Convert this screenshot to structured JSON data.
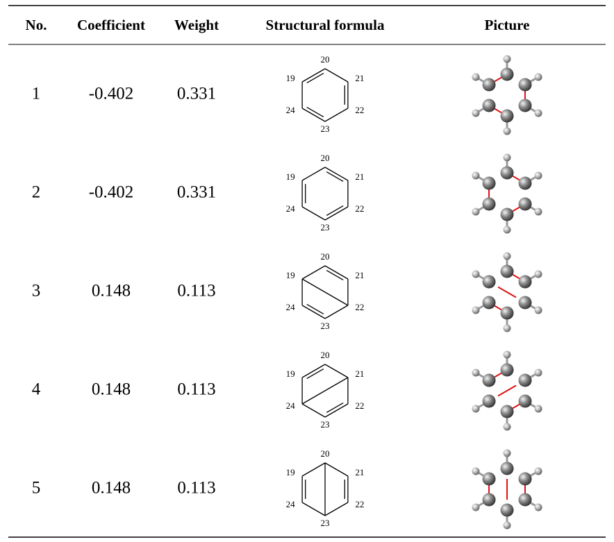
{
  "table": {
    "header": [
      "No.",
      "Coefficient",
      "Weight",
      "Structural formula",
      "Picture"
    ],
    "rows": [
      {
        "no": "1",
        "coefficient": "-0.402",
        "weight": "0.331",
        "atoms": [
          "20",
          "21",
          "22",
          "23",
          "24",
          "19"
        ]
      },
      {
        "no": "2",
        "coefficient": "-0.402",
        "weight": "0.331",
        "atoms": [
          "20",
          "21",
          "22",
          "23",
          "24",
          "19"
        ]
      },
      {
        "no": "3",
        "coefficient": "0.148",
        "weight": "0.113",
        "atoms": [
          "20",
          "21",
          "22",
          "23",
          "24",
          "19"
        ]
      },
      {
        "no": "4",
        "coefficient": "0.148",
        "weight": "0.113",
        "atoms": [
          "20",
          "21",
          "22",
          "23",
          "24",
          "19"
        ]
      },
      {
        "no": "5",
        "coefficient": "0.148",
        "weight": "0.113",
        "atoms": [
          "20",
          "21",
          "22",
          "23",
          "24",
          "19"
        ]
      }
    ]
  }
}
